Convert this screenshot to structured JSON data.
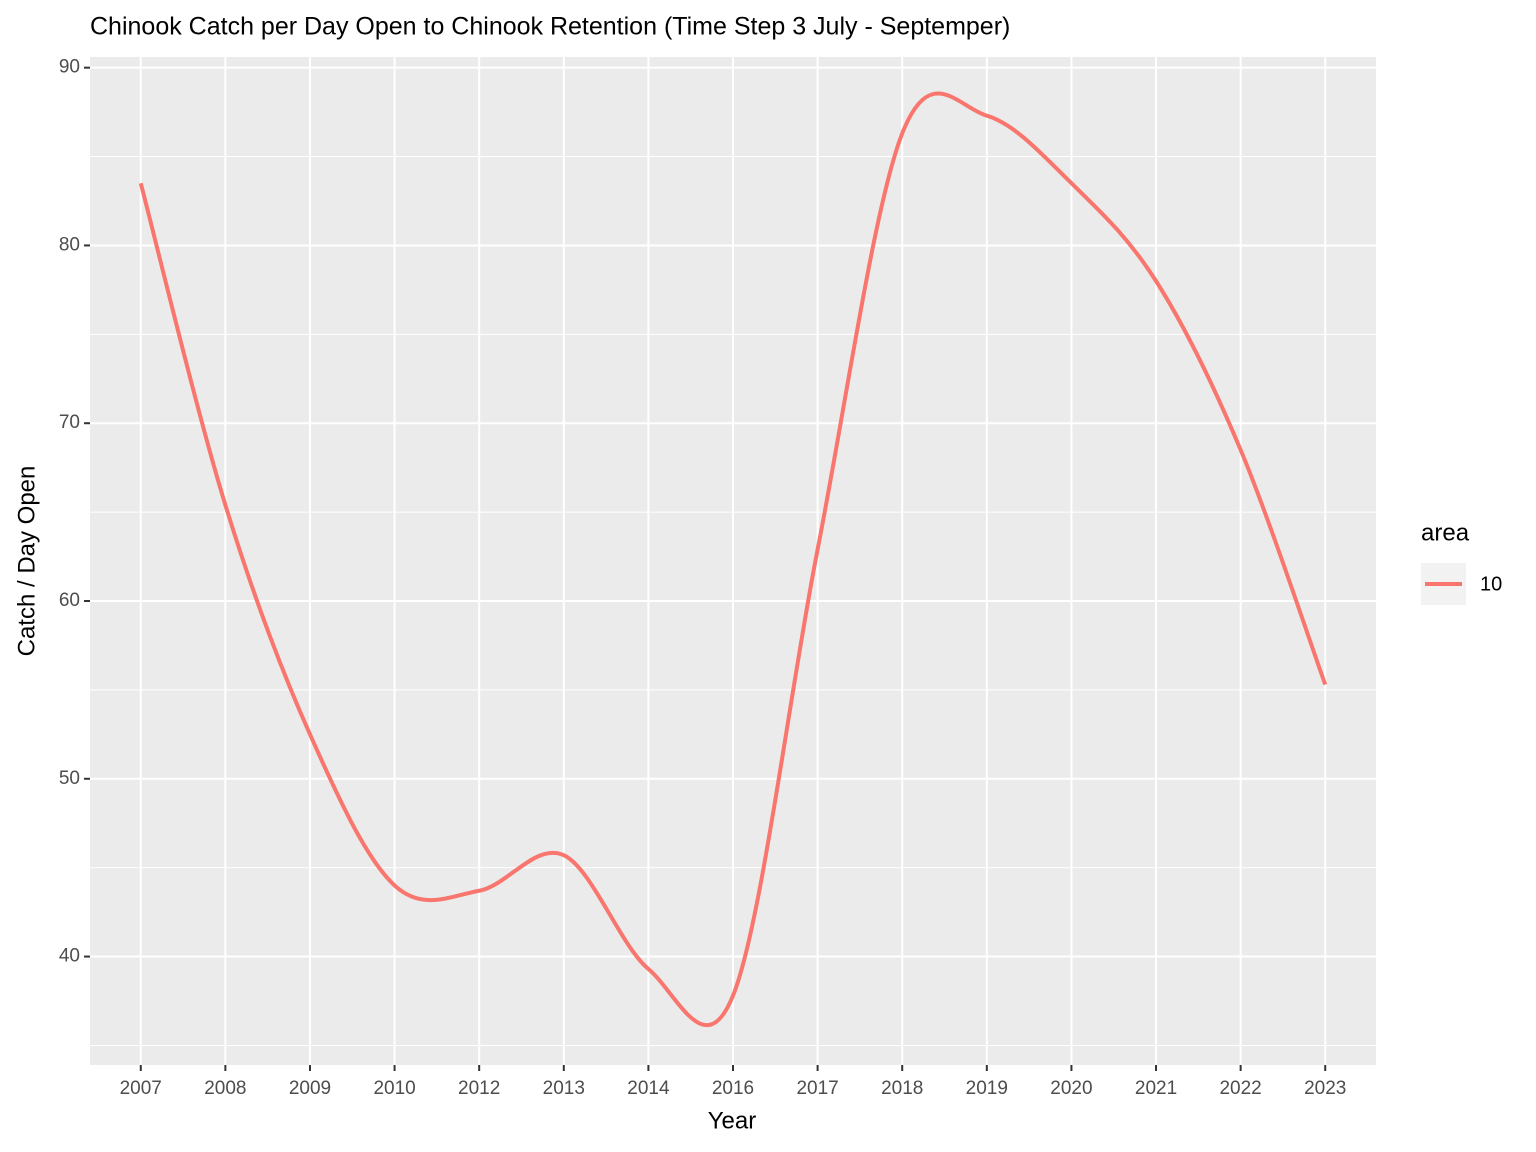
{
  "chart_data": {
    "type": "line",
    "title": "Chinook Catch per Day Open to Chinook Retention (Time Step 3 July - Septemper)",
    "x_label": "Year",
    "y_label": "Catch / Day Open",
    "categories": [
      "2007",
      "2008",
      "2009",
      "2010",
      "2012",
      "2013",
      "2014",
      "2016",
      "2017",
      "2018",
      "2019",
      "2020",
      "2021",
      "2022",
      "2023"
    ],
    "series": [
      {
        "name": "10",
        "color": "#F8766D",
        "values": [
          83.5,
          65.4,
          52.5,
          44.0,
          43.7,
          45.7,
          39.3,
          37.8,
          62.9,
          86.3,
          87.3,
          83.5,
          78.0,
          68.5,
          55.3
        ]
      }
    ],
    "legend_title": "area",
    "legend": "right",
    "ylim": [
      33.9,
      90.6
    ],
    "yticks": [
      40,
      50,
      60,
      70,
      80,
      90
    ],
    "minor_yticks": [
      35,
      45,
      55,
      65,
      75,
      85
    ],
    "grid": true
  }
}
